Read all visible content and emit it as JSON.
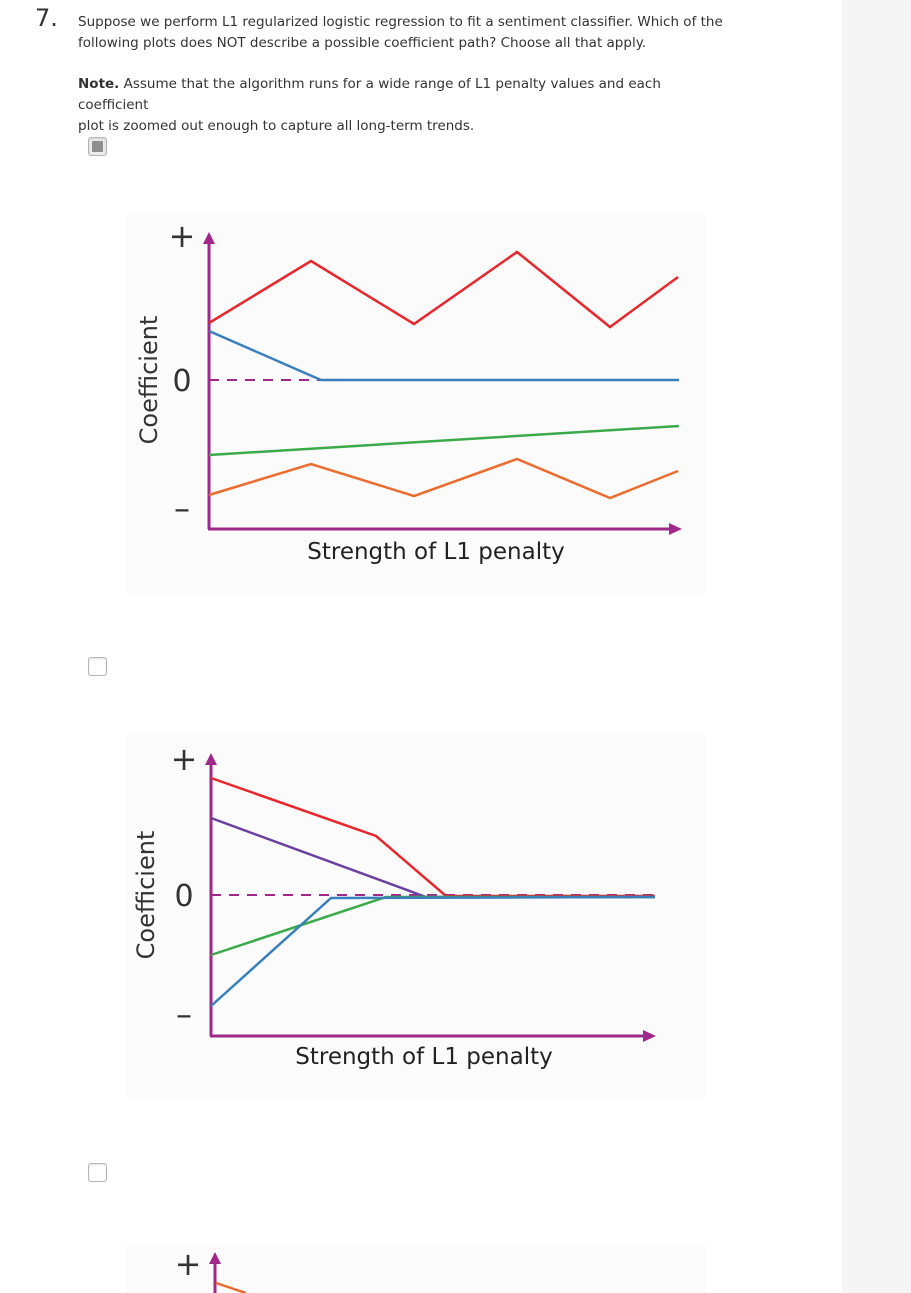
{
  "question": {
    "number": "7.",
    "text_line1": "Suppose we perform L1 regularized logistic regression to fit a sentiment classifier. Which of the",
    "text_line2": "following plots does NOT describe a possible coefficient path? Choose all that apply.",
    "note_label": "Note.",
    "note_line1": " Assume that the algorithm runs for a wide range of L1 penalty values and each coefficient",
    "note_line2": "plot is zoomed out enough to capture all long-term trends."
  },
  "options": [
    {
      "checked": true
    },
    {
      "checked": false
    },
    {
      "checked": false
    }
  ],
  "plot_labels": {
    "plus": "+",
    "zero": "0",
    "minus": "–",
    "ylabel": "Coefficient",
    "xlabel": "Strength of L1 penalty"
  },
  "colors": {
    "axis": "#a0288a",
    "red": "#e8262b",
    "blue": "#3a7fbd",
    "green": "#3aaa4a",
    "orange": "#ee6b2e",
    "purple": "#6a40a0",
    "checkbox_fill": "#8e8e8e"
  }
}
